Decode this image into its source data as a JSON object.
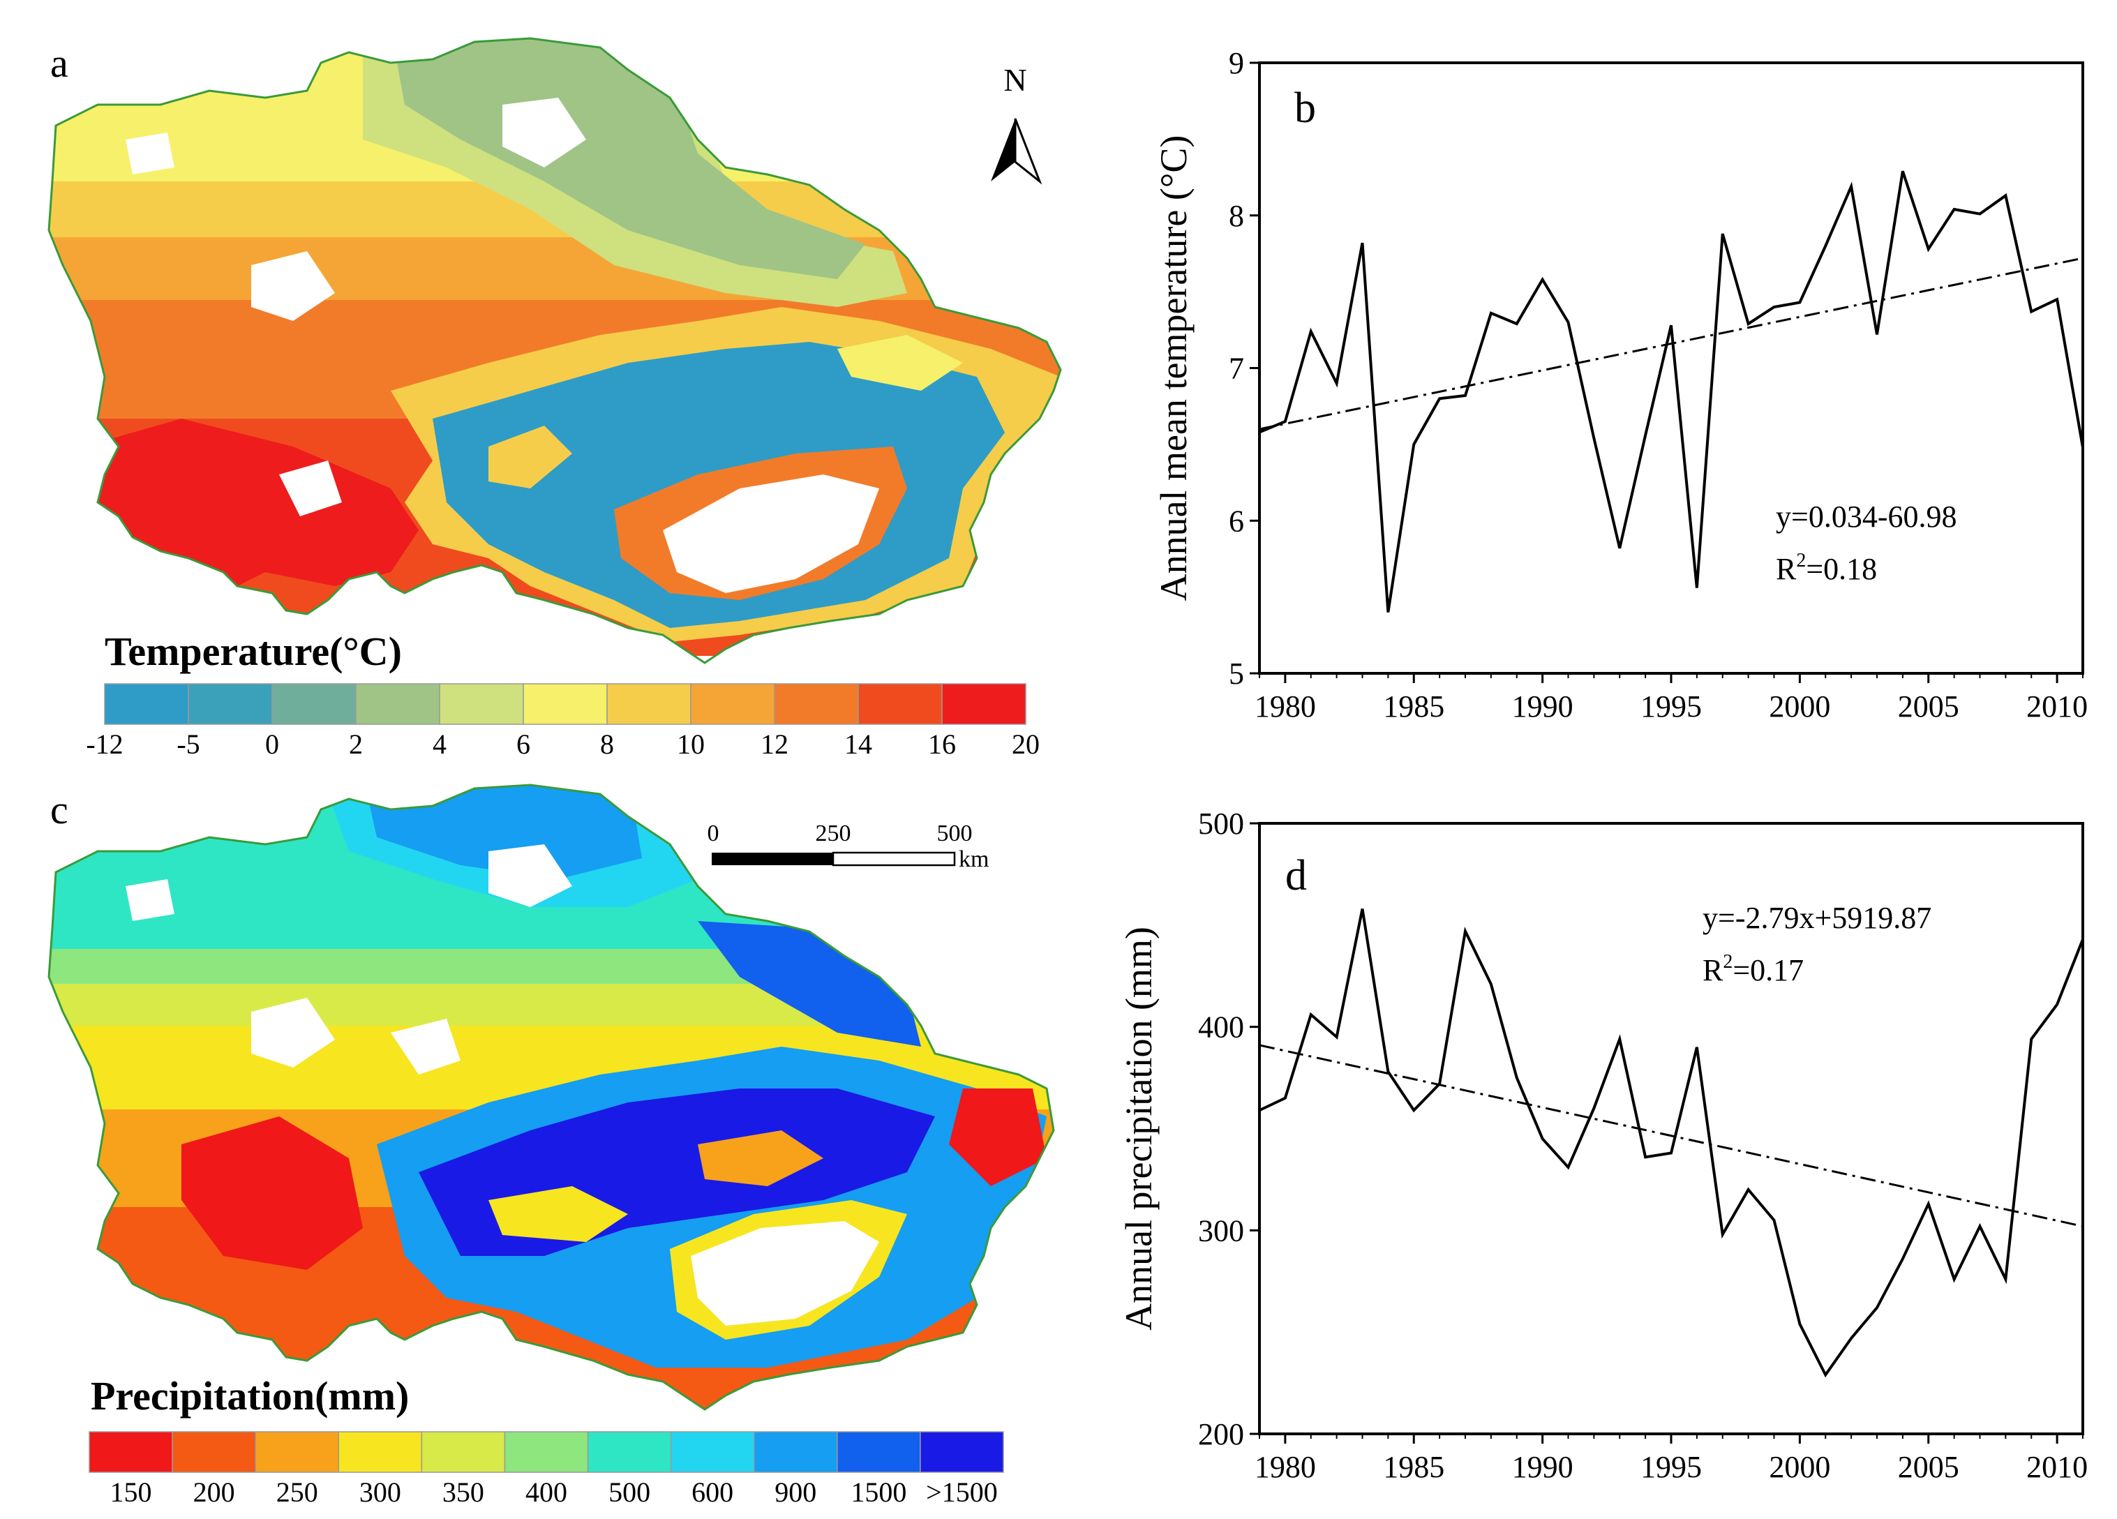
{
  "panels": {
    "a": {
      "label": "a",
      "north": "N",
      "legend": {
        "title": "Temperature(°C)",
        "colors": [
          "#2e9cc7",
          "#3ba0ba",
          "#6fae9a",
          "#9fc486",
          "#cfe07e",
          "#f7f06a",
          "#f5cd4a",
          "#f5a536",
          "#f27b2a",
          "#f04b1e",
          "#ee1c1c"
        ],
        "tick_labels": [
          "-12",
          "-5",
          "0",
          "2",
          "4",
          "6",
          "8",
          "10",
          "12",
          "14",
          "16",
          "20"
        ]
      }
    },
    "b": {
      "label": "b",
      "equation": "y=0.034-60.98",
      "r2_prefix": "R",
      "r2_sup": "2",
      "r2_value": "=0.18"
    },
    "c": {
      "label": "c",
      "scalebar": {
        "ticks": [
          "0",
          "250",
          "500"
        ],
        "unit": "km"
      },
      "legend": {
        "title": "Precipitation(mm)",
        "colors": [
          "#f01818",
          "#f45a14",
          "#f7a21a",
          "#f7e520",
          "#d7ea48",
          "#8ee67e",
          "#2ee6c4",
          "#22d6f2",
          "#159ef2",
          "#1260ee",
          "#1a1ae6"
        ],
        "tick_labels": [
          "150",
          "200",
          "250",
          "300",
          "350",
          "400",
          "500",
          "600",
          "900",
          "1500",
          ">1500"
        ]
      }
    },
    "d": {
      "label": "d",
      "equation": "y=-2.79x+5919.87",
      "r2_prefix": "R",
      "r2_sup": "2",
      "r2_value": "=0.17"
    }
  },
  "chart_data": [
    {
      "type": "line",
      "panel": "b",
      "ylabel": "Annual mean temperature (°C)",
      "xlim": [
        1979,
        2011
      ],
      "ylim": [
        5,
        9
      ],
      "x_ticks": [
        "1980",
        "1985",
        "1990",
        "1995",
        "2000",
        "2005",
        "2010"
      ],
      "y_ticks": [
        "5",
        "6",
        "7",
        "8",
        "9"
      ],
      "x": [
        1979,
        1980,
        1981,
        1982,
        1983,
        1984,
        1985,
        1986,
        1987,
        1988,
        1989,
        1990,
        1991,
        1992,
        1993,
        1994,
        1995,
        1996,
        1997,
        1998,
        1999,
        2000,
        2001,
        2002,
        2003,
        2004,
        2005,
        2006,
        2007,
        2008,
        2009,
        2010,
        2011
      ],
      "series": [
        {
          "values": [
            6.58,
            6.65,
            7.24,
            6.9,
            7.82,
            5.4,
            6.5,
            6.8,
            6.82,
            7.36,
            7.29,
            7.58,
            7.3,
            6.54,
            5.82,
            6.56,
            7.28,
            5.56,
            7.88,
            7.29,
            7.4,
            7.43,
            7.8,
            8.19,
            7.22,
            8.29,
            7.78,
            8.04,
            8.01,
            8.13,
            7.37,
            7.45,
            6.48
          ]
        }
      ],
      "trend": {
        "x": [
          1979,
          2011
        ],
        "y": [
          6.6,
          7.72
        ]
      }
    },
    {
      "type": "line",
      "panel": "d",
      "ylabel": "Annual precipitation (mm)",
      "xlim": [
        1979,
        2011
      ],
      "ylim": [
        200,
        500
      ],
      "x_ticks": [
        "1980",
        "1985",
        "1990",
        "1995",
        "2000",
        "2005",
        "2010"
      ],
      "y_ticks": [
        "200",
        "300",
        "400",
        "500"
      ],
      "x": [
        1979,
        1980,
        1981,
        1982,
        1983,
        1984,
        1985,
        1986,
        1987,
        1988,
        1989,
        1990,
        1991,
        1992,
        1993,
        1994,
        1995,
        1996,
        1997,
        1998,
        1999,
        2000,
        2001,
        2002,
        2003,
        2004,
        2005,
        2006,
        2007,
        2008,
        2009,
        2010,
        2011
      ],
      "series": [
        {
          "values": [
            359,
            365,
            406,
            395,
            458,
            378,
            359,
            372,
            447,
            421,
            375,
            345,
            331,
            360,
            394,
            336,
            338,
            390,
            298,
            320,
            305,
            254,
            229,
            247,
            262,
            286,
            313,
            276,
            302,
            276,
            394,
            411,
            443
          ]
        }
      ],
      "trend": {
        "x": [
          1979,
          2011
        ],
        "y": [
          391,
          302
        ]
      }
    }
  ]
}
